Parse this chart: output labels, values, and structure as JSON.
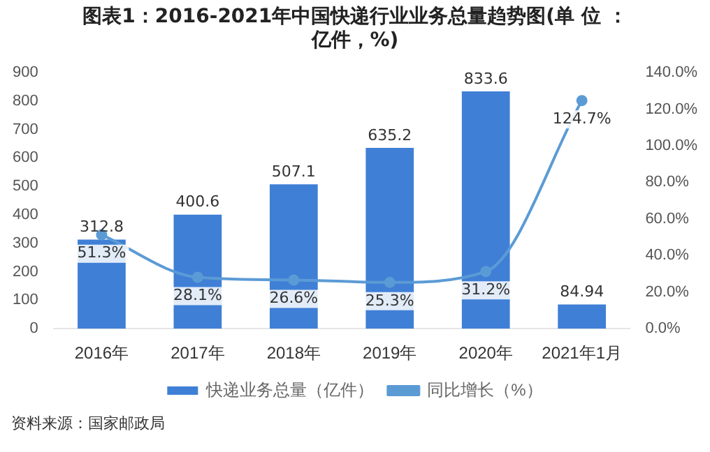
{
  "chart_data": {
    "type": "bar",
    "title": "图表1：2016-2021年中国快递行业业务总量趋势图(单 位 ：亿件，%)",
    "categories": [
      "2016年",
      "2017年",
      "2018年",
      "2019年",
      "2020年",
      "2021年1月"
    ],
    "series": [
      {
        "name": "快递业务总量（亿件）",
        "color": "#3f7fd6",
        "values": [
          312.8,
          400.6,
          507.1,
          635.2,
          833.6,
          84.94
        ],
        "value_labels": [
          "312.8",
          "400.6",
          "507.1",
          "635.2",
          "833.6",
          "84.94"
        ]
      },
      {
        "name": "同比增长（%）",
        "type": "line",
        "axis": "y2",
        "color": "#5b9bd5",
        "values": [
          51.3,
          28.1,
          26.6,
          25.3,
          31.2,
          124.7
        ],
        "value_labels": [
          "51.3%",
          "28.1%",
          "26.6%",
          "25.3%",
          "31.2%",
          "124.7%"
        ]
      }
    ],
    "ylim": [
      0,
      900
    ],
    "yticks": [
      0,
      100,
      200,
      300,
      400,
      500,
      600,
      700,
      800,
      900
    ],
    "y2lim": [
      0,
      140
    ],
    "y2ticks": [
      {
        "value": 0,
        "label": "0.0%"
      },
      {
        "value": 20,
        "label": "20.0%"
      },
      {
        "value": 40,
        "label": "40.0%"
      },
      {
        "value": 60,
        "label": "60.0%"
      },
      {
        "value": 80,
        "label": "80.0%"
      },
      {
        "value": 100,
        "label": "100.0%"
      },
      {
        "value": 120,
        "label": "120.0%"
      },
      {
        "value": 140,
        "label": "140.0%"
      }
    ],
    "legend": "bottom",
    "marker": "circle",
    "grid": false,
    "annotations": [
      "资料来源：国家邮政局"
    ]
  }
}
